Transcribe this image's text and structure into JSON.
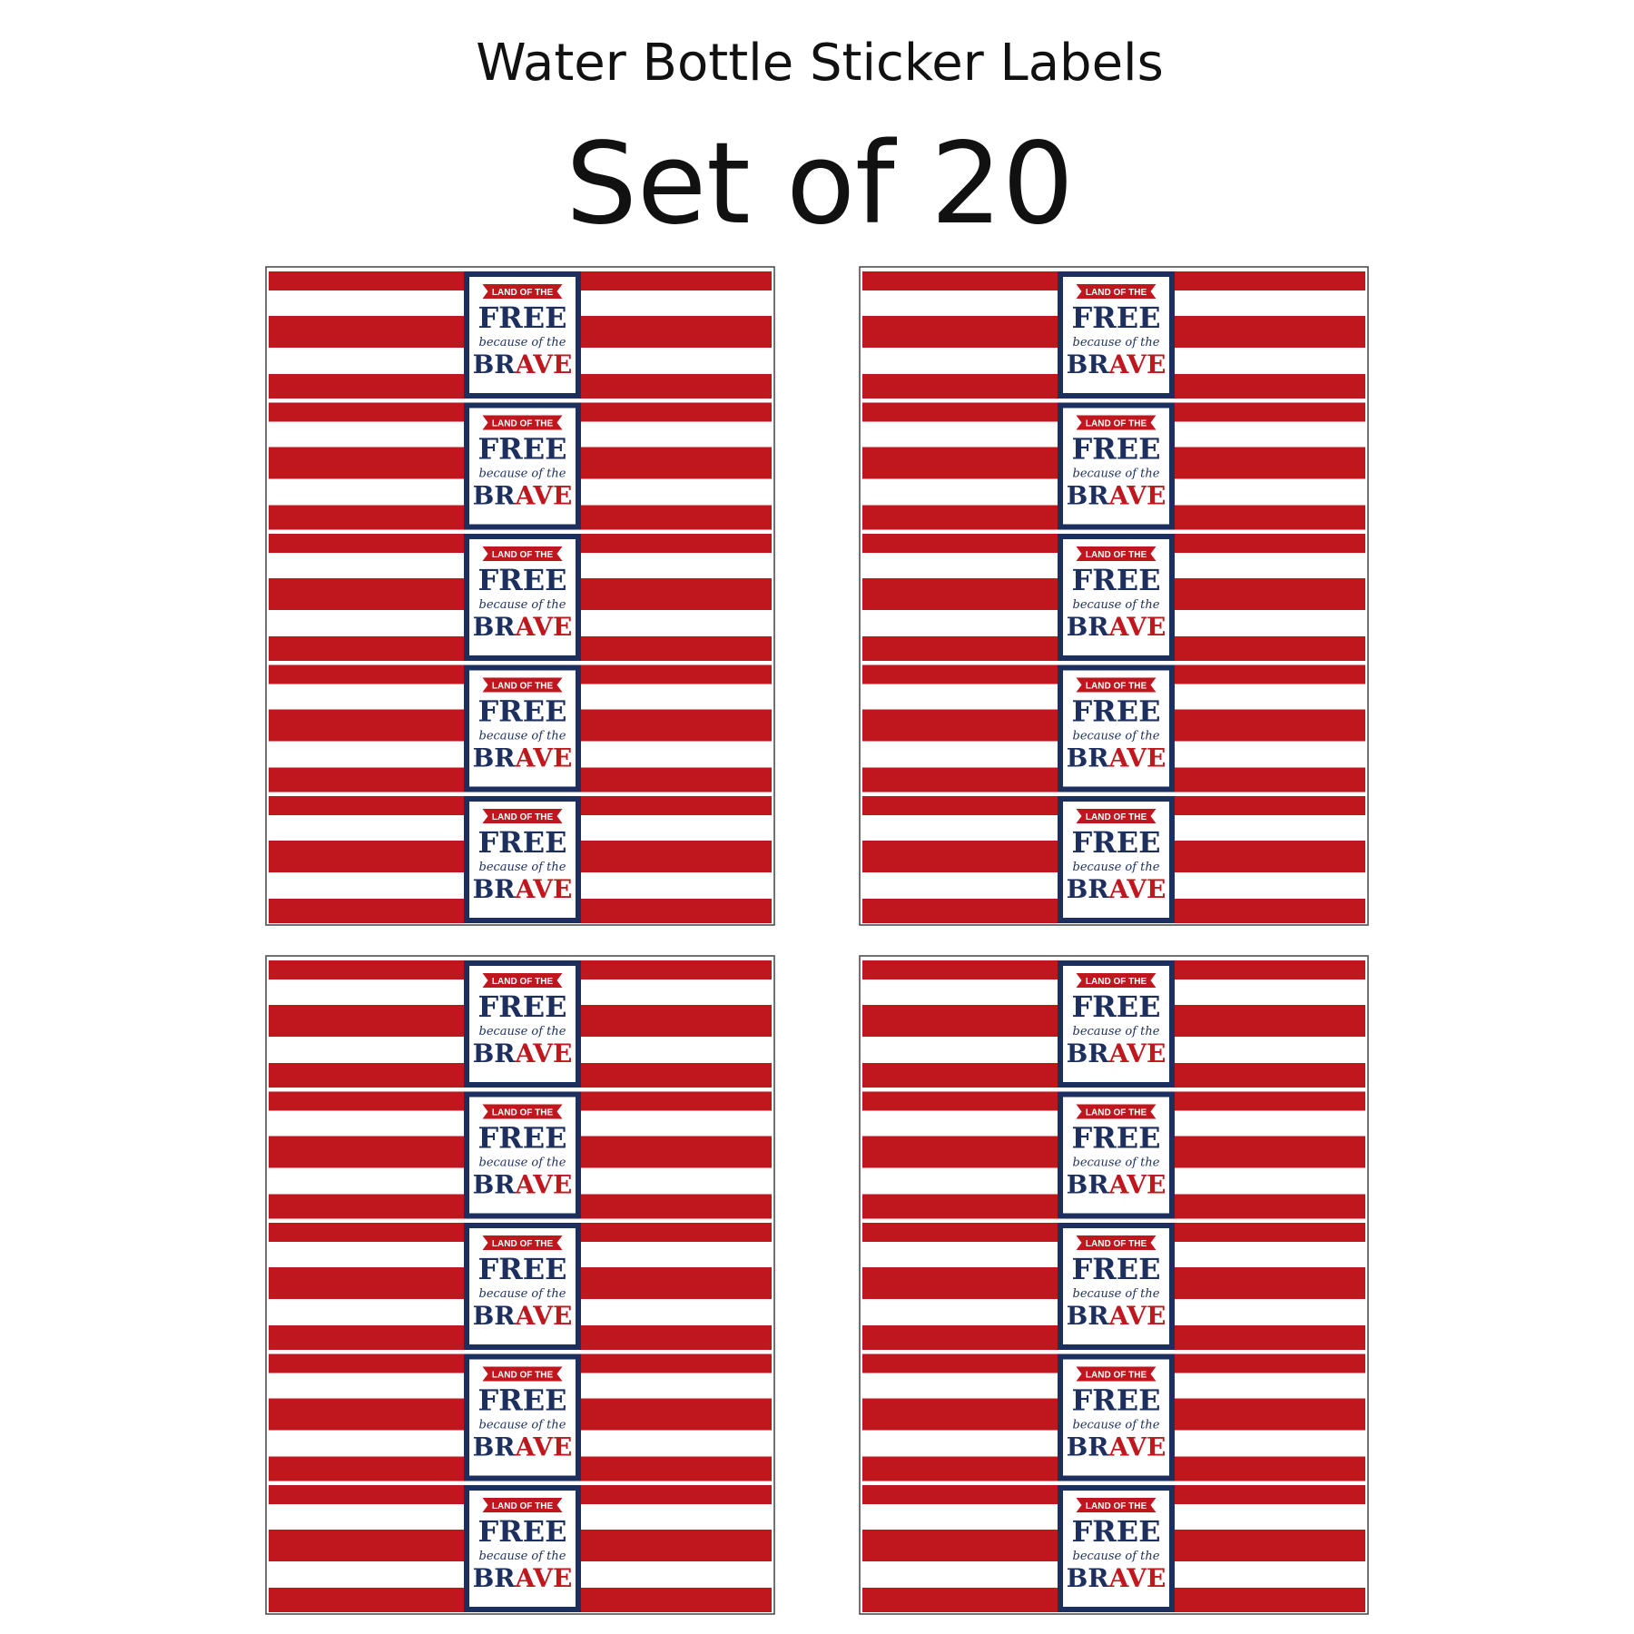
{
  "header": {
    "title": "Water Bottle Sticker Labels",
    "subtitle": "Set of 20"
  },
  "label": {
    "banner": "LAND OF THE",
    "main": "FREE",
    "script": "because of the",
    "brave_start": "BR",
    "brave_end": "AVE"
  }
}
